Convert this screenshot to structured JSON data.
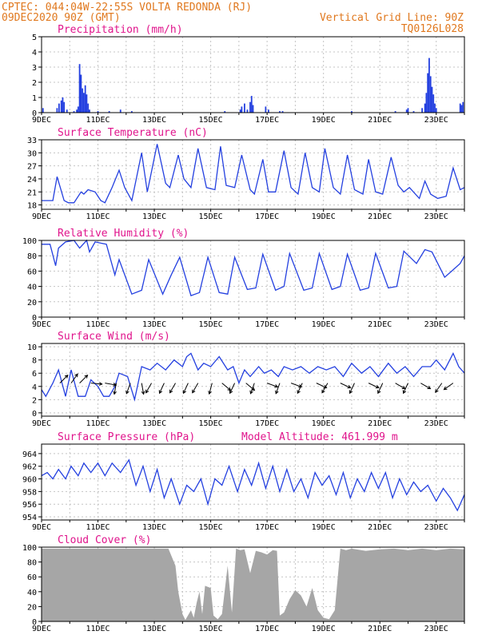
{
  "header": {
    "line1": "CPTEC:  044:04W-22:55S  VOLTA REDONDA (RJ)",
    "line2_left": "09DEC2020 90Z (GMT)",
    "line2_right": "Vertical Grid Line: 90Z",
    "code": "TQ0126L028"
  },
  "colors": {
    "header": "#e0781e",
    "title": "#e0148c",
    "series": "#2440e0",
    "cloud": "#a6a6a6",
    "grid": "#c4c4c4"
  },
  "chart_data": [
    {
      "type": "bar",
      "title": "Precipitation (mm/h)",
      "ylim": [
        0,
        5
      ],
      "yticks": [
        "0",
        "1",
        "2",
        "3",
        "4",
        "5"
      ],
      "xticks": [
        "9DEC",
        "11DEC",
        "13DEC",
        "15DEC",
        "17DEC",
        "19DEC",
        "21DEC",
        "23DEC"
      ],
      "x_days": [
        0,
        15
      ],
      "events": [
        {
          "x": 0.05,
          "y": 0.3
        },
        {
          "x": 0.55,
          "y": 0.3
        },
        {
          "x": 0.62,
          "y": 0.6
        },
        {
          "x": 0.7,
          "y": 0.8
        },
        {
          "x": 0.75,
          "y": 1.0
        },
        {
          "x": 0.8,
          "y": 0.7
        },
        {
          "x": 0.9,
          "y": 0.2
        },
        {
          "x": 1.15,
          "y": 0.1
        },
        {
          "x": 1.25,
          "y": 0.2
        },
        {
          "x": 1.3,
          "y": 0.4
        },
        {
          "x": 1.35,
          "y": 3.2
        },
        {
          "x": 1.4,
          "y": 2.5
        },
        {
          "x": 1.45,
          "y": 1.6
        },
        {
          "x": 1.5,
          "y": 1.3
        },
        {
          "x": 1.55,
          "y": 1.8
        },
        {
          "x": 1.6,
          "y": 1.2
        },
        {
          "x": 1.65,
          "y": 0.6
        },
        {
          "x": 1.7,
          "y": 0.2
        },
        {
          "x": 2.0,
          "y": 0.1
        },
        {
          "x": 2.4,
          "y": 0.1
        },
        {
          "x": 2.8,
          "y": 0.2
        },
        {
          "x": 3.2,
          "y": 0.1
        },
        {
          "x": 6.5,
          "y": 0.1
        },
        {
          "x": 7.05,
          "y": 0.2
        },
        {
          "x": 7.1,
          "y": 0.4
        },
        {
          "x": 7.2,
          "y": 0.6
        },
        {
          "x": 7.3,
          "y": 0.2
        },
        {
          "x": 7.4,
          "y": 0.7
        },
        {
          "x": 7.45,
          "y": 1.1
        },
        {
          "x": 7.5,
          "y": 0.5
        },
        {
          "x": 7.95,
          "y": 0.4
        },
        {
          "x": 8.05,
          "y": 0.2
        },
        {
          "x": 8.45,
          "y": 0.1
        },
        {
          "x": 8.55,
          "y": 0.1
        },
        {
          "x": 11.0,
          "y": 0.1
        },
        {
          "x": 12.55,
          "y": 0.1
        },
        {
          "x": 12.95,
          "y": 0.2
        },
        {
          "x": 13.0,
          "y": 0.3
        },
        {
          "x": 13.2,
          "y": 0.1
        },
        {
          "x": 13.5,
          "y": 0.3
        },
        {
          "x": 13.6,
          "y": 0.6
        },
        {
          "x": 13.65,
          "y": 1.3
        },
        {
          "x": 13.7,
          "y": 2.6
        },
        {
          "x": 13.75,
          "y": 3.6
        },
        {
          "x": 13.8,
          "y": 2.4
        },
        {
          "x": 13.85,
          "y": 1.7
        },
        {
          "x": 13.9,
          "y": 1.2
        },
        {
          "x": 13.95,
          "y": 0.6
        },
        {
          "x": 14.0,
          "y": 0.3
        },
        {
          "x": 14.85,
          "y": 0.6
        },
        {
          "x": 14.9,
          "y": 0.5
        },
        {
          "x": 14.95,
          "y": 0.7
        }
      ]
    },
    {
      "type": "line",
      "title": "Surface Temperature (nC)",
      "ylim": [
        17,
        33
      ],
      "yticks": [
        "18",
        "21",
        "24",
        "27",
        "30",
        "33"
      ],
      "xticks": [
        "9DEC",
        "11DEC",
        "13DEC",
        "15DEC",
        "17DEC",
        "19DEC",
        "21DEC",
        "23DEC"
      ],
      "x_days": [
        0,
        15
      ],
      "x": [
        0,
        0.4,
        0.55,
        0.8,
        0.95,
        1.15,
        1.4,
        1.5,
        1.65,
        1.9,
        2.1,
        2.25,
        2.5,
        2.75,
        2.95,
        3.2,
        3.55,
        3.75,
        4.1,
        4.4,
        4.55,
        4.85,
        5.05,
        5.3,
        5.55,
        5.85,
        6.15,
        6.35,
        6.55,
        6.85,
        7.1,
        7.4,
        7.55,
        7.85,
        8.05,
        8.3,
        8.6,
        8.85,
        9.1,
        9.35,
        9.6,
        9.85,
        10.05,
        10.35,
        10.6,
        10.85,
        11.1,
        11.4,
        11.6,
        11.85,
        12.1,
        12.4,
        12.65,
        12.85,
        13.05,
        13.4,
        13.6,
        13.8,
        14.05,
        14.35,
        14.6,
        14.85,
        15.0
      ],
      "y": [
        19,
        19,
        24.5,
        19,
        18.5,
        18.5,
        21,
        20.5,
        21.5,
        21,
        19,
        18.5,
        22,
        26,
        22,
        19,
        30,
        21,
        32,
        23,
        22,
        29.5,
        24,
        22,
        31,
        22,
        21.5,
        31.5,
        22.5,
        22,
        29.5,
        21.5,
        20.5,
        28.5,
        21,
        21,
        30.5,
        22,
        20.5,
        30,
        22,
        21,
        31,
        22,
        20.5,
        29.5,
        21.5,
        20.5,
        28.5,
        21,
        20.5,
        29,
        22.5,
        21,
        22,
        19.5,
        23.5,
        20.5,
        19.5,
        20,
        26.5,
        21.5,
        22
      ]
    },
    {
      "type": "line",
      "title": "Relative Humidity (%)",
      "ylim": [
        0,
        100
      ],
      "yticks": [
        "0",
        "20",
        "40",
        "60",
        "80",
        "100"
      ],
      "xticks": [
        "9DEC",
        "11DEC",
        "13DEC",
        "15DEC",
        "17DEC",
        "19DEC",
        "21DEC",
        "23DEC"
      ],
      "x_days": [
        0,
        15
      ],
      "x": [
        0,
        0.3,
        0.5,
        0.6,
        0.85,
        1.15,
        1.35,
        1.6,
        1.7,
        1.9,
        2.3,
        2.6,
        2.75,
        3.2,
        3.55,
        3.8,
        4.3,
        4.6,
        4.9,
        5.3,
        5.6,
        5.9,
        6.3,
        6.6,
        6.85,
        7.3,
        7.6,
        7.85,
        8.3,
        8.6,
        8.8,
        9.3,
        9.6,
        9.85,
        10.3,
        10.6,
        10.85,
        11.3,
        11.6,
        11.85,
        12.3,
        12.6,
        12.85,
        13.3,
        13.6,
        13.85,
        14.3,
        14.55,
        14.85,
        15.0
      ],
      "y": [
        95,
        95,
        67,
        90,
        98,
        100,
        90,
        100,
        85,
        98,
        95,
        55,
        75,
        30,
        35,
        75,
        30,
        55,
        78,
        28,
        32,
        78,
        32,
        30,
        78,
        36,
        38,
        82,
        35,
        40,
        83,
        35,
        38,
        83,
        36,
        40,
        82,
        35,
        38,
        83,
        38,
        40,
        86,
        70,
        88,
        85,
        52,
        60,
        70,
        80
      ]
    },
    {
      "type": "line",
      "title": "Surface Wind (m/s)",
      "ylim": [
        -0.5,
        10.5
      ],
      "yticks": [
        "0",
        "2",
        "4",
        "6",
        "8",
        "10"
      ],
      "xticks": [
        "9DEC",
        "11DEC",
        "13DEC",
        "15DEC",
        "17DEC",
        "19DEC",
        "21DEC",
        "23DEC"
      ],
      "x_days": [
        0,
        15
      ],
      "x": [
        0,
        0.15,
        0.4,
        0.6,
        0.85,
        1.05,
        1.3,
        1.55,
        1.75,
        2.0,
        2.2,
        2.4,
        2.6,
        2.75,
        3.05,
        3.3,
        3.55,
        3.85,
        4.1,
        4.4,
        4.7,
        5.0,
        5.15,
        5.3,
        5.55,
        5.75,
        6.0,
        6.3,
        6.6,
        6.8,
        7.0,
        7.2,
        7.4,
        7.7,
        7.9,
        8.15,
        8.4,
        8.6,
        8.9,
        9.2,
        9.5,
        9.8,
        10.1,
        10.4,
        10.7,
        11.0,
        11.35,
        11.65,
        11.95,
        12.3,
        12.6,
        12.9,
        13.2,
        13.5,
        13.8,
        14.0,
        14.3,
        14.6,
        14.8,
        15.0
      ],
      "y": [
        3.5,
        2.5,
        4.5,
        6.5,
        2.5,
        6.5,
        2.5,
        2.5,
        5,
        4,
        2.5,
        2.5,
        4,
        6,
        5.5,
        2,
        7,
        6.5,
        7.5,
        6.5,
        8,
        7,
        8.5,
        9,
        6.5,
        7.5,
        7,
        8.5,
        6.5,
        7,
        4.5,
        6.5,
        5.5,
        7,
        6,
        6.5,
        5.5,
        7,
        6.5,
        7,
        6,
        7,
        6.5,
        7,
        5.5,
        7.5,
        6,
        7,
        5.5,
        7.5,
        6,
        7,
        5.5,
        7,
        7,
        8,
        6.5,
        9,
        7,
        6
      ]
    },
    {
      "type": "line",
      "title": "Surface Pressure (hPa)",
      "annotation": "Model Altitude: 461.999 m",
      "ylim": [
        953.5,
        965.5
      ],
      "yticks": [
        "954",
        "956",
        "958",
        "960",
        "962",
        "964"
      ],
      "xticks": [
        "9DEC",
        "11DEC",
        "13DEC",
        "15DEC",
        "17DEC",
        "19DEC",
        "21DEC",
        "23DEC"
      ],
      "x_days": [
        0,
        15
      ],
      "x": [
        0,
        0.2,
        0.4,
        0.6,
        0.85,
        1.05,
        1.3,
        1.5,
        1.75,
        2.0,
        2.25,
        2.5,
        2.8,
        3.1,
        3.35,
        3.6,
        3.85,
        4.1,
        4.35,
        4.6,
        4.9,
        5.15,
        5.4,
        5.65,
        5.9,
        6.15,
        6.4,
        6.65,
        6.95,
        7.2,
        7.45,
        7.7,
        7.95,
        8.2,
        8.45,
        8.7,
        8.95,
        9.2,
        9.45,
        9.7,
        9.95,
        10.2,
        10.45,
        10.7,
        10.95,
        11.2,
        11.45,
        11.7,
        11.95,
        12.2,
        12.45,
        12.7,
        12.95,
        13.2,
        13.45,
        13.7,
        14.0,
        14.25,
        14.5,
        14.75,
        15.0
      ],
      "y": [
        960.5,
        961,
        960,
        961.5,
        960,
        962,
        960.5,
        962.5,
        961,
        962.5,
        960.5,
        962.5,
        961,
        963,
        959,
        962,
        958,
        961.5,
        957,
        960,
        956,
        959,
        958,
        960,
        956,
        960,
        959,
        962,
        958,
        961.5,
        959,
        962.5,
        958.5,
        962,
        958,
        961.5,
        958,
        960,
        957,
        961,
        959,
        960.5,
        957.5,
        961,
        957,
        960,
        958,
        961,
        958.5,
        961,
        957,
        960,
        957.5,
        959.5,
        958,
        959,
        956.5,
        958.5,
        957,
        955,
        957.5
      ]
    },
    {
      "type": "area",
      "title": "Cloud Cover (%)",
      "ylim": [
        0,
        100
      ],
      "yticks": [
        "0",
        "20",
        "40",
        "60",
        "80",
        "100"
      ],
      "xticks": [
        "9DEC",
        "11DEC",
        "13DEC",
        "15DEC",
        "17DEC",
        "19DEC",
        "21DEC",
        "23DEC"
      ],
      "x_days": [
        0,
        15
      ],
      "x": [
        0,
        4.5,
        4.75,
        4.85,
        5.0,
        5.1,
        5.3,
        5.4,
        5.5,
        5.6,
        5.7,
        5.8,
        6.0,
        6.1,
        6.25,
        6.4,
        6.6,
        6.75,
        6.9,
        7.05,
        7.2,
        7.4,
        7.6,
        7.8,
        8.0,
        8.2,
        8.35,
        8.45,
        8.6,
        8.8,
        9.0,
        9.2,
        9.4,
        9.6,
        9.8,
        10.0,
        10.2,
        10.4,
        10.6,
        10.8,
        11.0,
        11.5,
        12.0,
        12.5,
        13.0,
        13.5,
        14.0,
        14.5,
        15.0
      ],
      "y": [
        98,
        98,
        75,
        40,
        10,
        2,
        15,
        5,
        25,
        40,
        10,
        48,
        45,
        8,
        3,
        10,
        75,
        12,
        98,
        96,
        97,
        65,
        95,
        93,
        90,
        96,
        95,
        8,
        12,
        30,
        42,
        35,
        20,
        45,
        15,
        5,
        3,
        15,
        98,
        96,
        98,
        95,
        97,
        98,
        96,
        98,
        96,
        98,
        97
      ]
    }
  ],
  "wind_barbs": [
    {
      "x": 0.65,
      "dir": 225
    },
    {
      "x": 1.05,
      "dir": 215
    },
    {
      "x": 1.35,
      "dir": 225
    },
    {
      "x": 1.75,
      "dir": 275
    },
    {
      "x": 2.25,
      "dir": 280
    },
    {
      "x": 2.65,
      "dir": 10
    },
    {
      "x": 3.15,
      "dir": 20
    },
    {
      "x": 3.55,
      "dir": 350
    },
    {
      "x": 3.9,
      "dir": 30
    },
    {
      "x": 4.35,
      "dir": 25
    },
    {
      "x": 4.75,
      "dir": 30
    },
    {
      "x": 5.2,
      "dir": 25
    },
    {
      "x": 5.55,
      "dir": 30
    },
    {
      "x": 6.05,
      "dir": 15
    },
    {
      "x": 6.4,
      "dir": 310
    },
    {
      "x": 6.85,
      "dir": 25
    },
    {
      "x": 7.25,
      "dir": 310
    },
    {
      "x": 7.55,
      "dir": 20
    },
    {
      "x": 8.0,
      "dir": 290
    },
    {
      "x": 8.45,
      "dir": 20
    },
    {
      "x": 8.85,
      "dir": 290
    },
    {
      "x": 9.25,
      "dir": 25
    },
    {
      "x": 9.75,
      "dir": 295
    },
    {
      "x": 10.15,
      "dir": 30
    },
    {
      "x": 10.6,
      "dir": 295
    },
    {
      "x": 11.1,
      "dir": 25
    },
    {
      "x": 11.6,
      "dir": 295
    },
    {
      "x": 12.1,
      "dir": 25
    },
    {
      "x": 12.55,
      "dir": 300
    },
    {
      "x": 13.0,
      "dir": 25
    },
    {
      "x": 13.45,
      "dir": 300
    },
    {
      "x": 14.2,
      "dir": 35
    },
    {
      "x": 14.6,
      "dir": 55
    }
  ]
}
